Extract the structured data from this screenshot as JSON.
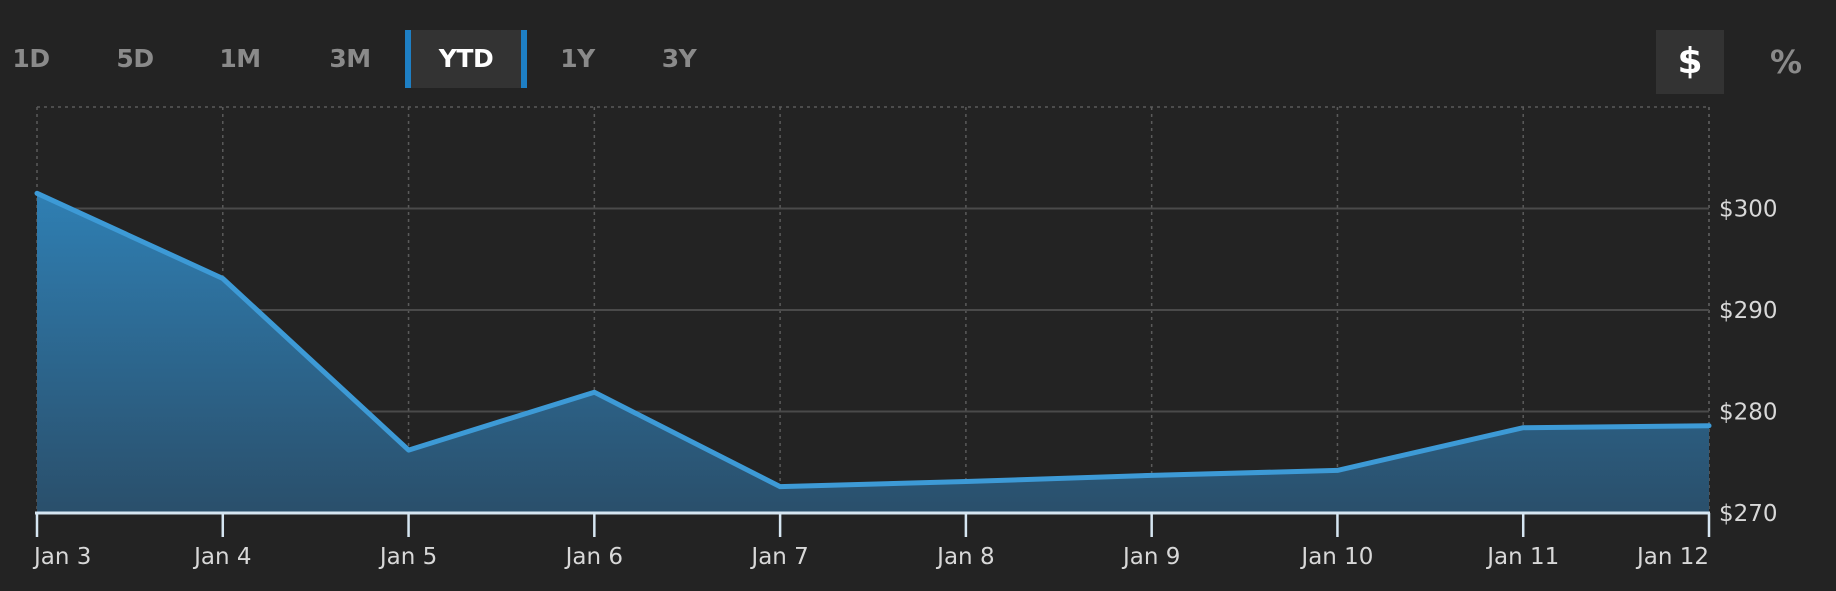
{
  "range_selector": {
    "options": [
      {
        "label": "1D",
        "active": false
      },
      {
        "label": "5D",
        "active": false
      },
      {
        "label": "1M",
        "active": false
      },
      {
        "label": "3M",
        "active": false
      },
      {
        "label": "YTD",
        "active": true
      },
      {
        "label": "1Y",
        "active": false
      },
      {
        "label": "3Y",
        "active": false
      }
    ]
  },
  "unit_toggle": {
    "dollar_label": "$",
    "percent_label": "%",
    "selected": "$"
  },
  "colors": {
    "background": "#232323",
    "line": "#3d9ad6",
    "fill_top": "#2f7fb3",
    "fill_bottom": "#2a4f6b",
    "accent": "#1e7fc4"
  },
  "chart_data": {
    "type": "area",
    "categories": [
      "Jan 3",
      "Jan 4",
      "Jan 5",
      "Jan 6",
      "Jan 7",
      "Jan 8",
      "Jan 9",
      "Jan 10",
      "Jan 11",
      "Jan 12"
    ],
    "values": [
      301.5,
      293.1,
      276.2,
      281.9,
      272.6,
      273.1,
      273.7,
      274.2,
      278.4,
      278.6
    ],
    "ylim": [
      270,
      310
    ],
    "yticks": [
      270,
      280,
      290,
      300
    ],
    "ytick_prefix": "$",
    "y_axis_position": "right",
    "grid": true,
    "title": "",
    "xlabel": "",
    "ylabel": ""
  }
}
